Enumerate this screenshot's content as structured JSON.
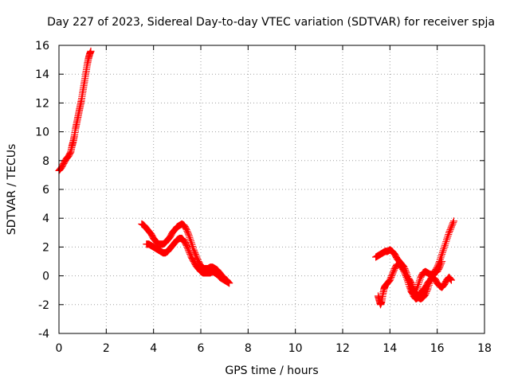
{
  "chart_data": {
    "type": "scatter",
    "title": "Day 227 of 2023, Sidereal Day-to-day VTEC variation (SDTVAR) for receiver spja",
    "xlabel": "GPS time / hours",
    "ylabel": "SDTVAR / TECUs",
    "xlim": [
      0,
      18
    ],
    "ylim": [
      -4,
      16
    ],
    "xticks": [
      "0",
      "2",
      "4",
      "6",
      "8",
      "10",
      "12",
      "14",
      "16",
      "18"
    ],
    "yticks": [
      "-4",
      "-2",
      "0",
      "2",
      "4",
      "6",
      "8",
      "10",
      "12",
      "14",
      "16"
    ],
    "grid": true,
    "marker": "plus",
    "series": [
      {
        "name": "SDTVAR",
        "color": "#ff0000",
        "segments": [
          [
            [
              0.0,
              7.3
            ],
            [
              0.1,
              7.5
            ],
            [
              0.2,
              7.8
            ],
            [
              0.3,
              8.1
            ],
            [
              0.4,
              8.3
            ],
            [
              0.5,
              8.6
            ],
            [
              0.55,
              9.0
            ],
            [
              0.6,
              9.3
            ],
            [
              0.65,
              9.7
            ],
            [
              0.7,
              10.2
            ],
            [
              0.75,
              10.6
            ],
            [
              0.8,
              11.0
            ],
            [
              0.85,
              11.4
            ],
            [
              0.9,
              11.8
            ],
            [
              0.95,
              12.2
            ],
            [
              1.0,
              12.7
            ],
            [
              1.05,
              13.2
            ],
            [
              1.1,
              13.7
            ],
            [
              1.15,
              14.2
            ],
            [
              1.2,
              14.7
            ],
            [
              1.25,
              15.1
            ],
            [
              1.3,
              15.4
            ],
            [
              1.35,
              15.6
            ]
          ],
          [
            [
              3.5,
              3.6
            ],
            [
              3.6,
              3.5
            ],
            [
              3.7,
              3.3
            ],
            [
              3.8,
              3.1
            ],
            [
              3.9,
              2.9
            ],
            [
              4.0,
              2.6
            ],
            [
              4.1,
              2.4
            ],
            [
              4.2,
              2.2
            ],
            [
              4.3,
              2.2
            ],
            [
              4.4,
              2.2
            ],
            [
              4.5,
              2.3
            ],
            [
              4.6,
              2.5
            ],
            [
              4.7,
              2.7
            ],
            [
              4.8,
              3.0
            ],
            [
              4.9,
              3.2
            ],
            [
              5.0,
              3.4
            ],
            [
              5.1,
              3.5
            ],
            [
              5.2,
              3.6
            ],
            [
              5.3,
              3.5
            ],
            [
              5.4,
              3.2
            ],
            [
              5.5,
              2.8
            ],
            [
              5.6,
              2.3
            ],
            [
              5.7,
              1.8
            ],
            [
              5.8,
              1.4
            ],
            [
              5.9,
              1.0
            ],
            [
              6.0,
              0.7
            ],
            [
              6.1,
              0.5
            ],
            [
              6.2,
              0.5
            ],
            [
              6.3,
              0.5
            ],
            [
              6.4,
              0.6
            ],
            [
              6.5,
              0.6
            ],
            [
              6.6,
              0.5
            ],
            [
              6.7,
              0.4
            ],
            [
              6.8,
              0.2
            ],
            [
              6.9,
              0.0
            ],
            [
              7.0,
              -0.2
            ],
            [
              7.1,
              -0.3
            ],
            [
              7.2,
              -0.5
            ]
          ],
          [
            [
              3.7,
              2.2
            ],
            [
              3.8,
              2.2
            ],
            [
              3.9,
              2.1
            ],
            [
              4.0,
              2.0
            ],
            [
              4.1,
              1.9
            ],
            [
              4.2,
              1.8
            ],
            [
              4.3,
              1.7
            ],
            [
              4.4,
              1.6
            ],
            [
              4.5,
              1.6
            ],
            [
              4.6,
              1.7
            ],
            [
              4.7,
              1.9
            ],
            [
              4.8,
              2.1
            ],
            [
              4.9,
              2.3
            ],
            [
              5.0,
              2.5
            ],
            [
              5.1,
              2.6
            ],
            [
              5.2,
              2.6
            ],
            [
              5.3,
              2.4
            ],
            [
              5.4,
              2.1
            ],
            [
              5.5,
              1.7
            ],
            [
              5.6,
              1.3
            ],
            [
              5.7,
              1.0
            ],
            [
              5.8,
              0.7
            ],
            [
              5.9,
              0.5
            ],
            [
              6.0,
              0.3
            ],
            [
              6.1,
              0.2
            ],
            [
              6.2,
              0.2
            ],
            [
              6.3,
              0.2
            ],
            [
              6.4,
              0.2
            ],
            [
              6.5,
              0.3
            ],
            [
              6.6,
              0.2
            ],
            [
              6.7,
              0.1
            ],
            [
              6.8,
              -0.1
            ],
            [
              6.9,
              -0.2
            ],
            [
              7.0,
              -0.3
            ],
            [
              7.1,
              -0.4
            ],
            [
              7.2,
              -0.5
            ]
          ],
          [
            [
              13.4,
              1.3
            ],
            [
              13.5,
              1.4
            ],
            [
              13.6,
              1.5
            ],
            [
              13.7,
              1.6
            ],
            [
              13.8,
              1.7
            ],
            [
              13.9,
              1.7
            ],
            [
              14.0,
              1.8
            ],
            [
              14.1,
              1.7
            ],
            [
              14.2,
              1.5
            ],
            [
              14.3,
              1.2
            ],
            [
              14.4,
              1.0
            ],
            [
              14.5,
              0.8
            ],
            [
              14.6,
              0.6
            ],
            [
              14.7,
              0.2
            ],
            [
              14.8,
              -0.3
            ],
            [
              14.9,
              -0.9
            ],
            [
              15.0,
              -1.4
            ],
            [
              15.1,
              -1.6
            ],
            [
              15.2,
              -1.5
            ],
            [
              15.3,
              -1.2
            ],
            [
              15.4,
              -1.0
            ],
            [
              15.5,
              -0.8
            ],
            [
              15.6,
              -0.5
            ],
            [
              15.7,
              -0.3
            ],
            [
              15.8,
              0.0
            ],
            [
              15.9,
              0.3
            ],
            [
              16.0,
              0.6
            ],
            [
              16.1,
              1.0
            ],
            [
              16.2,
              1.5
            ],
            [
              16.3,
              2.0
            ],
            [
              16.4,
              2.5
            ],
            [
              16.5,
              3.0
            ],
            [
              16.6,
              3.4
            ],
            [
              16.7,
              3.8
            ]
          ],
          [
            [
              13.5,
              -1.4
            ],
            [
              13.55,
              -1.7
            ],
            [
              13.6,
              -2.0
            ],
            [
              13.65,
              -1.8
            ],
            [
              13.7,
              -1.3
            ],
            [
              13.75,
              -0.9
            ],
            [
              13.8,
              -0.7
            ],
            [
              13.9,
              -0.5
            ],
            [
              14.0,
              -0.3
            ],
            [
              14.1,
              0.1
            ],
            [
              14.2,
              0.5
            ],
            [
              14.3,
              0.8
            ],
            [
              14.4,
              0.8
            ],
            [
              14.5,
              0.6
            ],
            [
              14.6,
              0.3
            ],
            [
              14.7,
              -0.1
            ],
            [
              14.8,
              -0.6
            ],
            [
              14.9,
              -1.1
            ],
            [
              15.0,
              -1.3
            ],
            [
              15.1,
              -1.1
            ],
            [
              15.2,
              -0.6
            ],
            [
              15.3,
              -0.1
            ],
            [
              15.4,
              0.2
            ],
            [
              15.5,
              0.3
            ],
            [
              15.6,
              0.2
            ],
            [
              15.7,
              0.1
            ],
            [
              15.8,
              0.1
            ],
            [
              15.9,
              0.2
            ],
            [
              16.0,
              0.3
            ],
            [
              16.1,
              0.6
            ],
            [
              16.2,
              1.0
            ]
          ],
          [
            [
              14.8,
              -0.2
            ],
            [
              14.9,
              -0.5
            ],
            [
              15.0,
              -0.9
            ],
            [
              15.1,
              -1.3
            ],
            [
              15.2,
              -1.5
            ],
            [
              15.3,
              -1.6
            ],
            [
              15.4,
              -1.5
            ],
            [
              15.5,
              -1.3
            ],
            [
              15.6,
              -0.9
            ],
            [
              15.7,
              -0.4
            ],
            [
              15.8,
              -0.1
            ],
            [
              15.9,
              -0.2
            ],
            [
              16.0,
              -0.5
            ],
            [
              16.1,
              -0.7
            ],
            [
              16.2,
              -0.8
            ],
            [
              16.3,
              -0.6
            ],
            [
              16.4,
              -0.3
            ],
            [
              16.5,
              -0.1
            ],
            [
              16.6,
              -0.3
            ]
          ]
        ]
      }
    ]
  }
}
